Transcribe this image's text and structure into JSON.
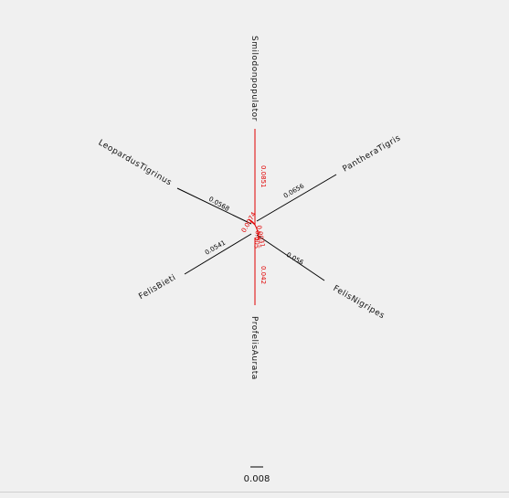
{
  "colors": {
    "background": "#f0f0f0",
    "branch": "#000000",
    "highlight": "#e00000",
    "text": "#111111"
  },
  "tree": {
    "branches": [
      {
        "taxon": "Smilodonpopulator",
        "branch_length": "0.0851",
        "highlighted": true
      },
      {
        "taxon": "PantheraTigris",
        "branch_length": "0.0656",
        "highlighted": false
      },
      {
        "taxon": "FelisNigripes",
        "branch_length": "0.056",
        "highlighted": false
      },
      {
        "taxon": "ProfelisAurata",
        "branch_length": "0.042",
        "highlighted": true
      },
      {
        "taxon": "FelisBieti",
        "branch_length": "0.0541",
        "highlighted": false
      },
      {
        "taxon": "LeopardusTigrinus",
        "branch_length": "0.0568",
        "highlighted": false
      }
    ],
    "internal_labels": [
      {
        "text": "0.0074",
        "color": "#e00000"
      },
      {
        "text": "0.0031",
        "color": "#e00000"
      },
      {
        "text": "0.005",
        "color": "#e00000"
      }
    ]
  },
  "scale_bar": {
    "label": "0.008"
  }
}
